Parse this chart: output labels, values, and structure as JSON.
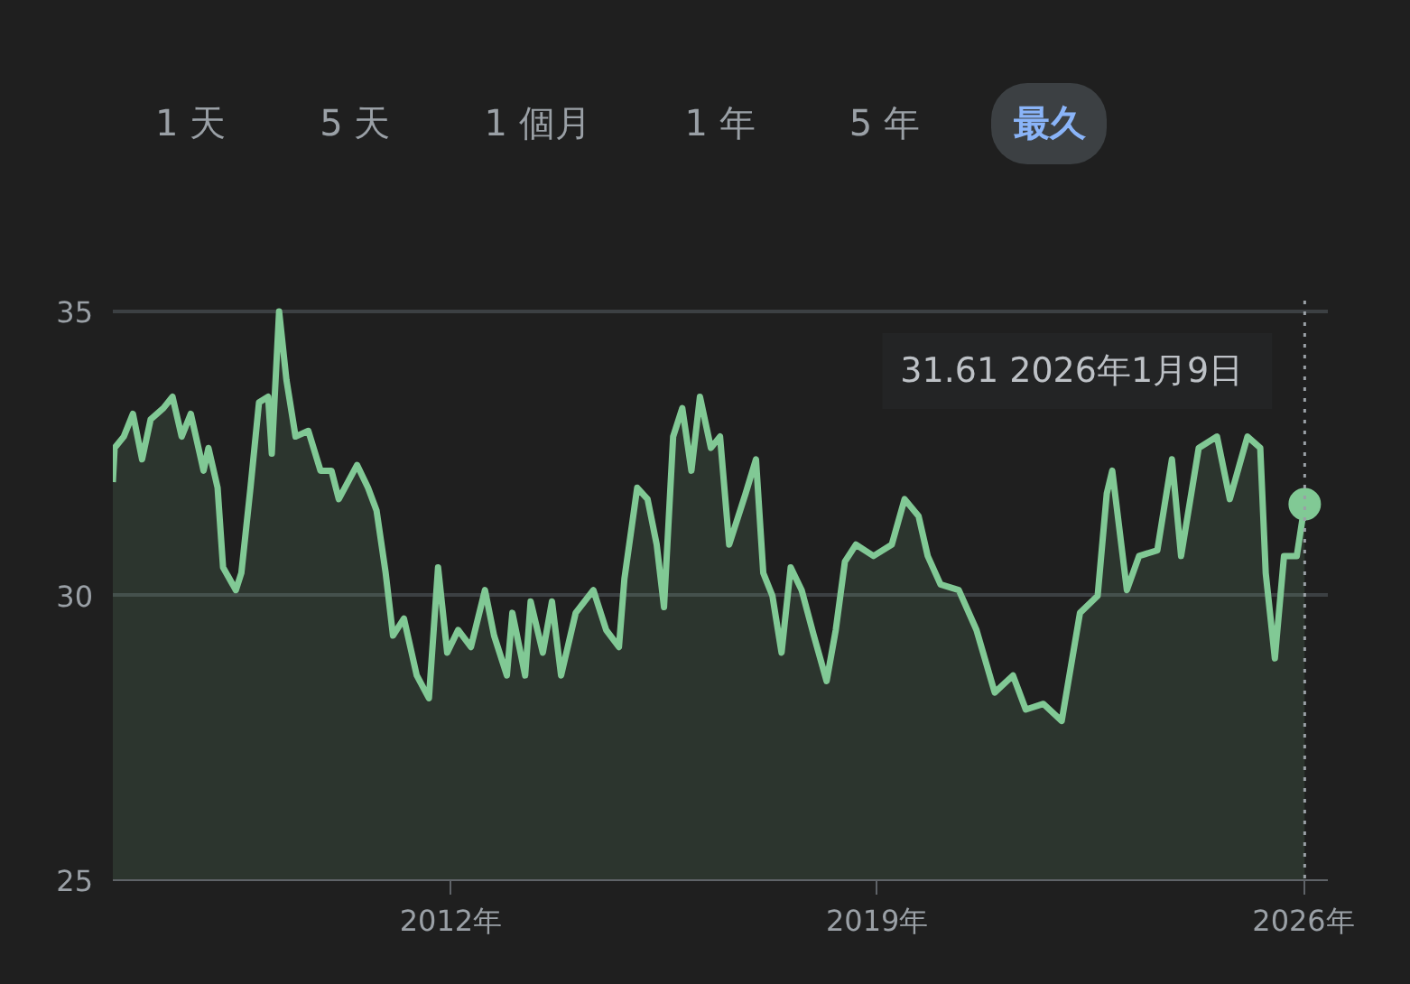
{
  "chart_data": {
    "type": "area",
    "x": [
      2006.45,
      2006.48,
      2006.63,
      2006.78,
      2006.93,
      2007.07,
      2007.28,
      2007.43,
      2007.58,
      2007.73,
      2007.94,
      2008.02,
      2008.17,
      2008.26,
      2008.47,
      2008.56,
      2008.71,
      2008.85,
      2009.0,
      2009.06,
      2009.18,
      2009.3,
      2009.45,
      2009.66,
      2009.86,
      2010.04,
      2010.16,
      2010.46,
      2010.64,
      2010.78,
      2010.93,
      2011.05,
      2011.23,
      2011.44,
      2011.64,
      2011.79,
      2011.94,
      2012.12,
      2012.33,
      2012.56,
      2012.71,
      2012.92,
      2013.01,
      2013.22,
      2013.31,
      2013.51,
      2013.66,
      2013.81,
      2014.05,
      2014.34,
      2014.55,
      2014.76,
      2014.85,
      2015.06,
      2015.23,
      2015.38,
      2015.5,
      2015.65,
      2015.8,
      2015.95,
      2016.09,
      2016.27,
      2016.42,
      2016.57,
      2016.84,
      2017.01,
      2017.13,
      2017.28,
      2017.43,
      2017.58,
      2017.76,
      2017.96,
      2018.17,
      2018.32,
      2018.47,
      2018.65,
      2018.94,
      2019.24,
      2019.45,
      2019.68,
      2019.83,
      2020.04,
      2020.34,
      2020.63,
      2020.93,
      2021.23,
      2021.44,
      2021.73,
      2022.03,
      2022.33,
      2022.62,
      2022.77,
      2022.86,
      2023.1,
      2023.3,
      2023.6,
      2023.84,
      2023.99,
      2024.28,
      2024.58,
      2024.79,
      2025.08,
      2025.29,
      2025.38,
      2025.53,
      2025.68,
      2025.89,
      2026.02
    ],
    "series": [
      {
        "color": "#81c995",
        "values": [
          32.0,
          32.6,
          32.8,
          33.2,
          32.4,
          33.1,
          33.3,
          33.5,
          32.8,
          33.2,
          32.2,
          32.6,
          31.9,
          30.5,
          30.1,
          30.4,
          31.9,
          33.4,
          33.5,
          32.5,
          35.0,
          33.8,
          32.8,
          32.9,
          32.2,
          32.2,
          31.7,
          32.3,
          31.9,
          31.5,
          30.4,
          29.3,
          29.6,
          28.6,
          28.2,
          30.5,
          29.0,
          29.4,
          29.1,
          30.1,
          29.3,
          28.6,
          29.7,
          28.6,
          29.9,
          29.0,
          29.9,
          28.6,
          29.7,
          30.1,
          29.4,
          29.1,
          30.3,
          31.9,
          31.7,
          30.9,
          29.8,
          32.8,
          33.3,
          32.2,
          33.5,
          32.6,
          32.8,
          30.9,
          31.8,
          32.4,
          30.4,
          30.0,
          29.0,
          30.5,
          30.1,
          29.3,
          28.5,
          29.4,
          30.6,
          30.9,
          30.7,
          30.9,
          31.7,
          31.4,
          30.7,
          30.2,
          30.1,
          29.4,
          28.3,
          28.6,
          28.0,
          28.1,
          27.8,
          29.7,
          30.0,
          31.8,
          32.2,
          30.1,
          30.7,
          30.8,
          32.4,
          30.7,
          32.6,
          32.8,
          31.7,
          32.8,
          32.6,
          30.4,
          28.9,
          30.7,
          30.7,
          31.61
        ]
      }
    ],
    "xlim": [
      2006.45,
      2026.4
    ],
    "ylim": [
      25,
      35.19
    ],
    "xticks": [
      {
        "value": 2012,
        "label": "2012年"
      },
      {
        "value": 2019,
        "label": "2019年"
      },
      {
        "value": 2026,
        "label": "2026年"
      }
    ],
    "yticks": [
      25,
      30,
      35
    ],
    "grid": "y",
    "marker": "none",
    "ref_lines": [
      {
        "axis": "x",
        "value": 2026.02,
        "label": null,
        "color": "#9aa0a6",
        "line_style": "dotted"
      }
    ],
    "annotations": [
      "1 天",
      "5 天",
      "1 個月",
      "1 年",
      "5 年",
      "最久",
      "31.61  2026年1月9日"
    ]
  }
}
